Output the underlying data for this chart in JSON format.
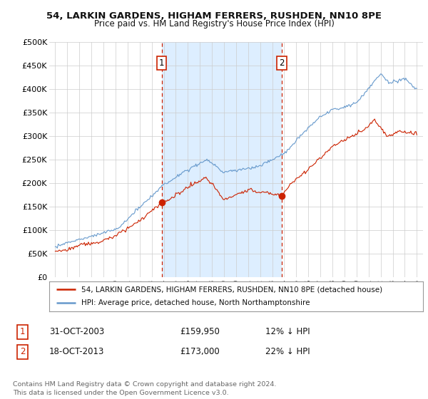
{
  "title1": "54, LARKIN GARDENS, HIGHAM FERRERS, RUSHDEN, NN10 8PE",
  "title2": "Price paid vs. HM Land Registry's House Price Index (HPI)",
  "plot_bg_color": "#ffffff",
  "shade_color": "#ddeeff",
  "hpi_color": "#6699cc",
  "price_color": "#cc2200",
  "vline_color": "#cc2200",
  "marker_color": "#cc2200",
  "purchase1_date_x": 2003.83,
  "purchase1_price": 159950,
  "purchase1_label": "1",
  "purchase2_date_x": 2013.79,
  "purchase2_price": 173000,
  "purchase2_label": "2",
  "ylim": [
    0,
    500000
  ],
  "xlim": [
    1994.5,
    2025.5
  ],
  "yticks": [
    0,
    50000,
    100000,
    150000,
    200000,
    250000,
    300000,
    350000,
    400000,
    450000,
    500000
  ],
  "ytick_labels": [
    "£0",
    "£50K",
    "£100K",
    "£150K",
    "£200K",
    "£250K",
    "£300K",
    "£350K",
    "£400K",
    "£450K",
    "£500K"
  ],
  "xtick_years": [
    1995,
    1996,
    1997,
    1998,
    1999,
    2000,
    2001,
    2002,
    2003,
    2004,
    2005,
    2006,
    2007,
    2008,
    2009,
    2010,
    2011,
    2012,
    2013,
    2014,
    2015,
    2016,
    2017,
    2018,
    2019,
    2020,
    2021,
    2022,
    2023,
    2024,
    2025
  ],
  "legend_line1": "54, LARKIN GARDENS, HIGHAM FERRERS, RUSHDEN, NN10 8PE (detached house)",
  "legend_line2": "HPI: Average price, detached house, North Northamptonshire",
  "table_row1": [
    "1",
    "31-OCT-2003",
    "£159,950",
    "12% ↓ HPI"
  ],
  "table_row2": [
    "2",
    "18-OCT-2013",
    "£173,000",
    "22% ↓ HPI"
  ],
  "footnote": "Contains HM Land Registry data © Crown copyright and database right 2024.\nThis data is licensed under the Open Government Licence v3.0."
}
